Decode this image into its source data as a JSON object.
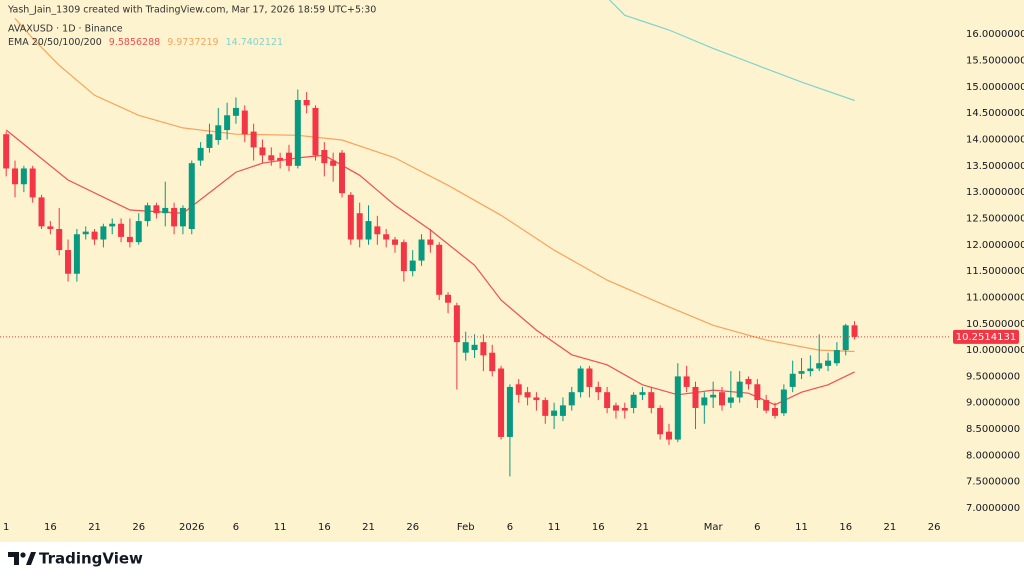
{
  "chart_data": {
    "type": "candlestick",
    "attribution": "Yash_Jain_1309 created with TradingView.com, Mar 17, 2026 18:59 UTC+5:30",
    "title": "AVAXUSD · 1D · Binance",
    "indicator_label": "EMA 20/50/100/200",
    "brand": "TradingView",
    "up_color": "#089981",
    "down_color": "#f23645",
    "open": [
      14.1,
      13.45,
      13.15,
      13.45,
      12.9,
      12.35,
      12.3,
      11.9,
      11.45,
      12.2,
      12.25,
      12.1,
      12.35,
      12.4,
      12.15,
      12.05,
      12.45,
      12.75,
      12.6,
      12.7,
      12.35,
      12.3,
      13.6,
      13.84,
      13.99,
      14.18,
      14.45,
      14.55,
      14.15,
      13.85,
      13.7,
      13.65,
      13.75,
      13.5,
      14.75,
      14.6,
      13.8,
      13.6,
      13.75,
      12.95,
      12.6,
      12.1,
      12.35,
      12.2,
      12.1,
      12.05,
      11.5,
      11.7,
      12.1,
      12.0,
      11.05,
      10.85,
      9.95,
      10.0,
      10.15,
      9.95,
      9.65,
      8.35,
      9.35,
      9.2,
      9.1,
      9.05,
      8.75,
      8.75,
      8.95,
      9.2,
      9.65,
      9.3,
      9.2,
      8.95,
      8.9,
      8.9,
      9.15,
      9.2,
      8.9,
      8.45,
      8.3,
      9.5,
      9.3,
      8.95,
      9.1,
      9.2,
      9.0,
      9.1,
      9.45,
      9.35,
      9.05,
      8.9,
      8.8,
      9.3,
      9.55,
      9.6,
      9.65,
      9.7,
      9.75,
      10.0,
      10.47
    ],
    "high": [
      14.15,
      13.6,
      13.5,
      13.5,
      12.95,
      12.45,
      12.7,
      12.1,
      12.3,
      12.35,
      12.3,
      12.4,
      12.5,
      12.5,
      12.5,
      12.6,
      12.8,
      12.8,
      13.2,
      12.8,
      12.75,
      13.6,
      13.95,
      14.3,
      14.6,
      14.7,
      14.8,
      14.65,
      14.3,
      14.0,
      13.85,
      13.75,
      13.9,
      14.95,
      14.9,
      14.65,
      13.95,
      13.75,
      13.8,
      13.0,
      12.8,
      12.75,
      12.55,
      12.3,
      12.15,
      12.1,
      11.9,
      12.2,
      12.3,
      12.05,
      11.1,
      10.9,
      10.35,
      10.3,
      10.3,
      10.1,
      9.7,
      9.35,
      9.45,
      9.3,
      9.2,
      9.1,
      9.0,
      9.1,
      9.3,
      9.7,
      9.7,
      9.4,
      9.3,
      9.0,
      9.0,
      9.2,
      9.3,
      9.3,
      8.95,
      8.6,
      9.75,
      9.7,
      9.4,
      9.2,
      9.4,
      9.3,
      9.6,
      9.6,
      9.5,
      9.45,
      9.15,
      9.0,
      9.35,
      9.8,
      9.85,
      9.9,
      10.3,
      9.95,
      10.15,
      10.5,
      10.55
    ],
    "low": [
      13.3,
      12.9,
      13.0,
      12.8,
      12.3,
      12.2,
      11.8,
      11.3,
      11.3,
      12.1,
      12.0,
      11.95,
      12.2,
      12.05,
      11.95,
      12.0,
      12.35,
      12.5,
      12.35,
      12.2,
      12.2,
      12.2,
      13.5,
      13.75,
      13.9,
      14.0,
      14.3,
      13.95,
      13.6,
      13.55,
      13.5,
      13.45,
      13.4,
      13.45,
      14.5,
      13.6,
      13.3,
      13.2,
      12.9,
      12.0,
      11.95,
      12.0,
      12.0,
      11.95,
      11.85,
      11.3,
      11.4,
      11.6,
      11.85,
      10.95,
      10.7,
      9.25,
      9.8,
      9.85,
      9.6,
      9.5,
      8.3,
      7.6,
      9.0,
      8.95,
      8.85,
      8.6,
      8.5,
      8.65,
      8.85,
      9.1,
      9.1,
      9.05,
      8.8,
      8.7,
      8.7,
      8.8,
      9.05,
      8.8,
      8.3,
      8.2,
      8.25,
      9.2,
      8.5,
      8.6,
      8.9,
      8.85,
      8.9,
      9.0,
      9.25,
      8.9,
      8.8,
      8.7,
      8.75,
      9.2,
      9.45,
      9.5,
      9.6,
      9.6,
      9.7,
      9.9,
      10.2
    ],
    "close": [
      13.45,
      13.15,
      13.45,
      12.9,
      12.35,
      12.3,
      11.9,
      11.45,
      12.2,
      12.25,
      12.1,
      12.35,
      12.4,
      12.15,
      12.05,
      12.45,
      12.75,
      12.6,
      12.7,
      12.35,
      12.7,
      13.55,
      13.84,
      14.1,
      14.27,
      14.46,
      14.6,
      14.1,
      13.85,
      13.7,
      13.6,
      13.6,
      13.5,
      14.75,
      14.65,
      13.7,
      13.55,
      13.5,
      12.98,
      12.1,
      12.1,
      12.45,
      12.2,
      12.1,
      12.0,
      11.5,
      11.7,
      12.1,
      12.0,
      11.05,
      10.9,
      10.15,
      10.15,
      10.1,
      9.9,
      9.6,
      8.35,
      9.3,
      9.15,
      9.1,
      9.05,
      8.75,
      8.85,
      8.95,
      9.2,
      9.65,
      9.3,
      9.2,
      8.9,
      8.85,
      8.85,
      9.15,
      9.2,
      8.9,
      8.4,
      8.3,
      9.5,
      9.3,
      8.9,
      9.1,
      9.15,
      8.95,
      9.1,
      9.4,
      9.35,
      9.05,
      8.85,
      8.75,
      9.25,
      9.55,
      9.6,
      9.65,
      9.75,
      9.8,
      10.0,
      10.47,
      10.2514131
    ],
    "series": [
      {
        "color": "#f0504f",
        "x": [
          0,
          7,
          14,
          20,
          26,
          29,
          33,
          36,
          40,
          44,
          48,
          53,
          56,
          60,
          64,
          68,
          72,
          76,
          80,
          84,
          87,
          90,
          93,
          96
        ],
        "values": [
          14.18,
          13.23,
          12.66,
          12.6,
          13.38,
          13.55,
          13.65,
          13.7,
          13.32,
          12.75,
          12.28,
          11.61,
          10.95,
          10.38,
          9.91,
          9.72,
          9.34,
          9.15,
          9.24,
          9.18,
          8.96,
          9.2,
          9.34,
          9.5856288
        ]
      },
      {
        "color": "#f7a35c",
        "x": [
          1,
          3,
          6,
          10,
          15,
          20,
          26,
          33,
          38,
          44,
          50,
          56,
          62,
          68,
          74,
          80,
          86,
          92,
          96
        ],
        "values": [
          16.3,
          15.92,
          15.41,
          14.84,
          14.46,
          14.22,
          14.1,
          14.08,
          13.99,
          13.65,
          13.13,
          12.56,
          11.9,
          11.33,
          10.89,
          10.47,
          10.19,
          10.0,
          9.9737219
        ]
      },
      {
        "color": "#7fd3cf",
        "x": [
          68,
          70,
          75,
          80,
          85,
          90,
          96
        ],
        "values": [
          16.7,
          16.36,
          16.08,
          15.73,
          15.41,
          15.09,
          14.7402121
        ]
      }
    ],
    "xlim": [
      -0.7,
      106.8
    ],
    "xticks": [
      {
        "value": 0,
        "label": "1"
      },
      {
        "value": 5,
        "label": "16"
      },
      {
        "value": 10,
        "label": "21"
      },
      {
        "value": 15,
        "label": "26"
      },
      {
        "value": 21,
        "label": "2026"
      },
      {
        "value": 26,
        "label": "6"
      },
      {
        "value": 31,
        "label": "11"
      },
      {
        "value": 36,
        "label": "16"
      },
      {
        "value": 41,
        "label": "21"
      },
      {
        "value": 46,
        "label": "26"
      },
      {
        "value": 52,
        "label": "Feb"
      },
      {
        "value": 57,
        "label": "6"
      },
      {
        "value": 62,
        "label": "11"
      },
      {
        "value": 67,
        "label": "16"
      },
      {
        "value": 72,
        "label": "21"
      },
      {
        "value": 80,
        "label": "Mar"
      },
      {
        "value": 85,
        "label": "6"
      },
      {
        "value": 90,
        "label": "11"
      },
      {
        "value": 95,
        "label": "16"
      },
      {
        "value": 100,
        "label": "21"
      },
      {
        "value": 105,
        "label": "26"
      }
    ],
    "ylim": [
      6.81,
      16.65
    ],
    "yticks": [
      {
        "value": 7,
        "label": "7.0000000"
      },
      {
        "value": 7.5,
        "label": "7.5000000"
      },
      {
        "value": 8,
        "label": "8.0000000"
      },
      {
        "value": 8.5,
        "label": "8.5000000"
      },
      {
        "value": 9,
        "label": "9.0000000"
      },
      {
        "value": 9.5,
        "label": "9.5000000"
      },
      {
        "value": 10,
        "label": "10.0000000"
      },
      {
        "value": 10.5,
        "label": "10.5000000"
      },
      {
        "value": 11,
        "label": "11.0000000"
      },
      {
        "value": 11.5,
        "label": "11.5000000"
      },
      {
        "value": 12,
        "label": "12.0000000"
      },
      {
        "value": 12.5,
        "label": "12.5000000"
      },
      {
        "value": 13,
        "label": "13.0000000"
      },
      {
        "value": 13.5,
        "label": "13.5000000"
      },
      {
        "value": 14,
        "label": "14.0000000"
      },
      {
        "value": 14.5,
        "label": "14.5000000"
      },
      {
        "value": 15,
        "label": "15.0000000"
      },
      {
        "value": 15.5,
        "label": "15.5000000"
      },
      {
        "value": 16,
        "label": "16.0000000"
      }
    ],
    "grid": false
  }
}
